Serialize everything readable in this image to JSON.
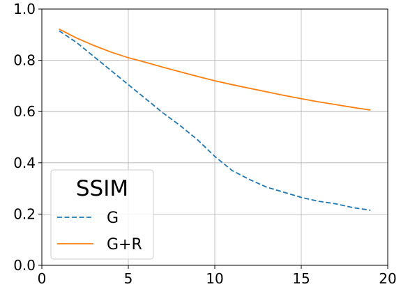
{
  "chart_data": {
    "type": "line",
    "title": "",
    "xlabel": "",
    "ylabel": "",
    "xlim": [
      0,
      20
    ],
    "ylim": [
      0.0,
      1.0
    ],
    "x_ticks": [
      "0",
      "5",
      "10",
      "15",
      "20"
    ],
    "y_ticks": [
      "0.0",
      "0.2",
      "0.4",
      "0.6",
      "0.8",
      "1.0"
    ],
    "grid": true,
    "legend": {
      "title": "SSIM",
      "placement": "lower-left"
    },
    "x": [
      1,
      2,
      3,
      4,
      5,
      6,
      7,
      8,
      9,
      10,
      11,
      12,
      13,
      14,
      15,
      16,
      17,
      18,
      19
    ],
    "series": [
      {
        "name": "G",
        "style": "dashed",
        "color": "#1f77b4",
        "values": [
          0.915,
          0.87,
          0.815,
          0.76,
          0.705,
          0.65,
          0.595,
          0.545,
          0.49,
          0.425,
          0.37,
          0.335,
          0.305,
          0.285,
          0.265,
          0.25,
          0.24,
          0.225,
          0.215
        ]
      },
      {
        "name": "G+R",
        "style": "solid",
        "color": "#ff7f0e",
        "values": [
          0.922,
          0.887,
          0.858,
          0.832,
          0.81,
          0.792,
          0.773,
          0.755,
          0.737,
          0.72,
          0.705,
          0.691,
          0.677,
          0.663,
          0.65,
          0.638,
          0.627,
          0.616,
          0.606
        ]
      }
    ]
  }
}
